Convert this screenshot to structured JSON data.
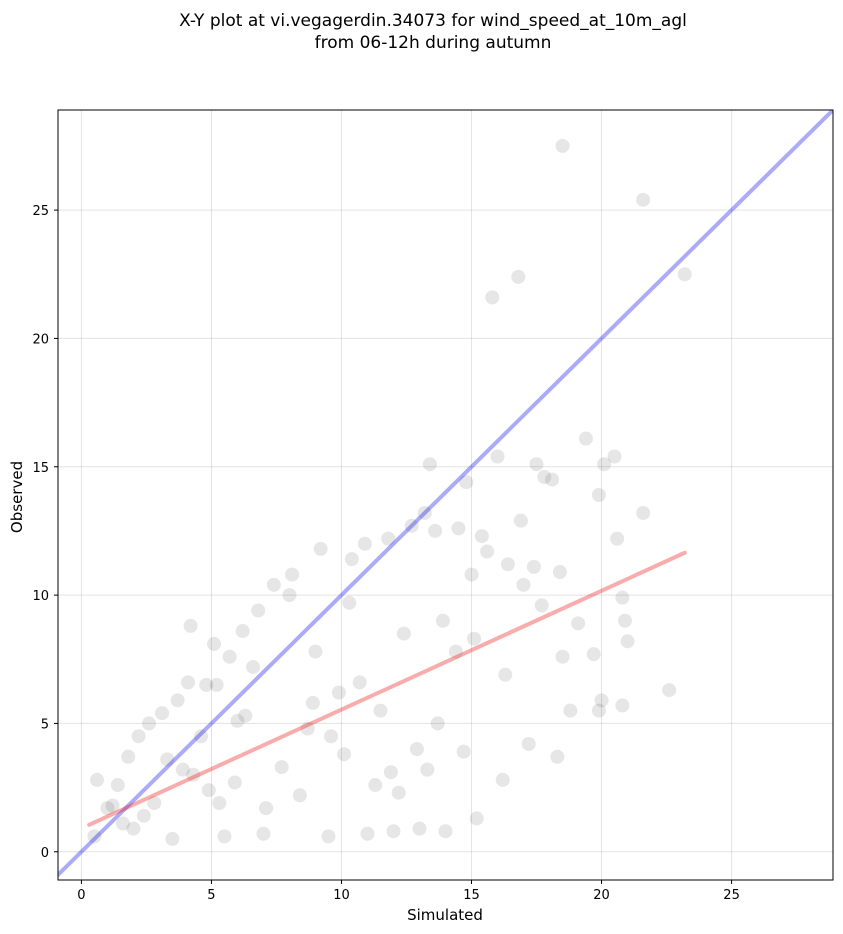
{
  "chart_data": {
    "type": "scatter",
    "title": [
      "X-Y plot at vi.vegagerdin.34073 for wind_speed_at_10m_agl",
      "from 06-12h during autumn"
    ],
    "xlabel": "Simulated",
    "ylabel": "Observed",
    "xlim": [
      -0.9,
      28.9
    ],
    "ylim": [
      -1.1,
      28.9
    ],
    "xticks": [
      0,
      5,
      10,
      15,
      20,
      25
    ],
    "yticks": [
      0,
      5,
      10,
      15,
      20,
      25
    ],
    "grid": true,
    "point_color": "#333333",
    "identity_line": {
      "x": [
        -0.9,
        28.9
      ],
      "y": [
        -0.9,
        28.9
      ],
      "color": "#0000ee"
    },
    "fit_line": {
      "x": [
        0.3,
        23.2
      ],
      "y": [
        1.05,
        11.65
      ],
      "color": "#ee1111"
    },
    "points": {
      "x": [
        18.5,
        21.6,
        23.2,
        16.8,
        15.8,
        19.4,
        20.5,
        20.1,
        13.4,
        16.0,
        17.5,
        17.8,
        18.1,
        19.9,
        21.6,
        15.4,
        14.8,
        16.9,
        20.6,
        22.6,
        20.9,
        20.0,
        21.0,
        20.8,
        19.7,
        19.1,
        18.4,
        17.4,
        17.7,
        15.6,
        15.0,
        16.4,
        17.0,
        18.5,
        18.8,
        18.3,
        20.8,
        19.9,
        4.2,
        5.1,
        13.6,
        14.5,
        13.2,
        12.7,
        11.8,
        10.9,
        10.4,
        9.2,
        8.1,
        8.0,
        7.4,
        6.8,
        6.2,
        5.7,
        5.2,
        4.8,
        4.1,
        3.7,
        3.1,
        2.6,
        2.2,
        1.8,
        1.4,
        1.0,
        0.6,
        0.5,
        2.0,
        3.5,
        5.5,
        7.0,
        9.5,
        11.0,
        12.0,
        13.0,
        14.0,
        15.2,
        16.2,
        17.2,
        10.3,
        12.4,
        13.9,
        14.4,
        15.1,
        16.3,
        6.3,
        8.7,
        9.9,
        11.5,
        12.9,
        7.7,
        5.9,
        4.3,
        3.3,
        2.8,
        6.6,
        9.0,
        10.7,
        11.9,
        13.3,
        14.7,
        8.4,
        7.1,
        5.3,
        4.6,
        3.9,
        2.4,
        1.6,
        1.2,
        9.6,
        10.1,
        11.3,
        12.2,
        13.7,
        8.9,
        6.0,
        4.9
      ],
      "y": [
        27.5,
        25.4,
        22.5,
        22.4,
        21.6,
        16.1,
        15.4,
        15.1,
        15.1,
        15.4,
        15.1,
        14.6,
        14.5,
        13.9,
        13.2,
        12.3,
        14.4,
        12.9,
        12.2,
        6.3,
        9.0,
        5.9,
        8.2,
        5.7,
        7.7,
        8.9,
        10.9,
        11.1,
        9.6,
        11.7,
        10.8,
        11.2,
        10.4,
        7.6,
        5.5,
        3.7,
        9.9,
        5.5,
        8.8,
        8.1,
        12.5,
        12.6,
        13.2,
        12.7,
        12.2,
        12.0,
        11.4,
        11.8,
        10.8,
        10.0,
        10.4,
        9.4,
        8.6,
        7.6,
        6.5,
        6.5,
        6.6,
        5.9,
        5.4,
        5.0,
        4.5,
        3.7,
        2.6,
        1.7,
        2.8,
        0.6,
        0.9,
        0.5,
        0.6,
        0.7,
        0.6,
        0.7,
        0.8,
        0.9,
        0.8,
        1.3,
        2.8,
        4.2,
        9.7,
        8.5,
        9.0,
        7.8,
        8.3,
        6.9,
        5.3,
        4.8,
        6.2,
        5.5,
        4.0,
        3.3,
        2.7,
        3.0,
        3.6,
        1.9,
        7.2,
        7.8,
        6.6,
        3.1,
        3.2,
        3.9,
        2.2,
        1.7,
        1.9,
        4.5,
        3.2,
        1.4,
        1.1,
        1.8,
        4.5,
        3.8,
        2.6,
        2.3,
        5.0,
        5.8,
        5.1,
        2.4
      ]
    }
  }
}
